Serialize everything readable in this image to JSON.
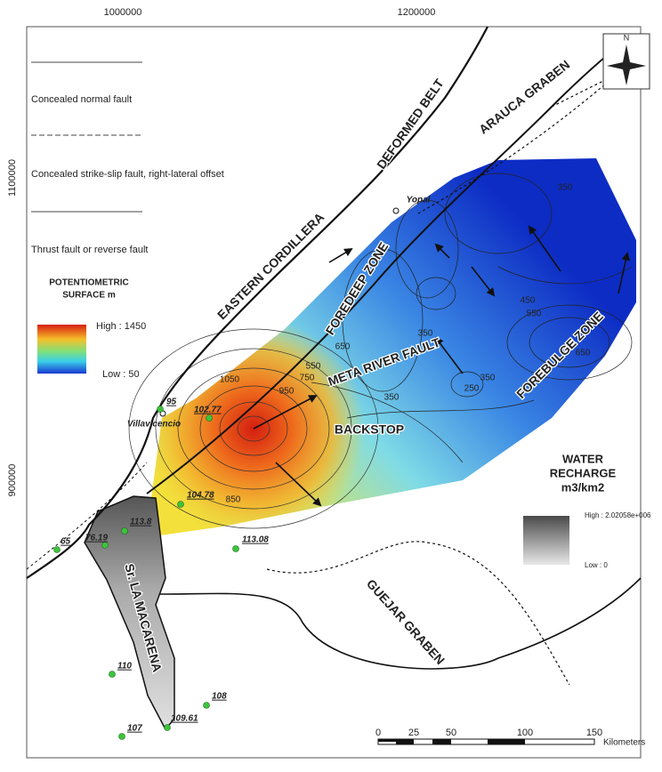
{
  "map": {
    "coordinates": {
      "top": [
        "1000000",
        "1200000"
      ],
      "left": [
        "1100000",
        "900000"
      ]
    },
    "legend": {
      "faults": [
        "Concealed normal fault",
        "Concealed strike-slip fault, right-lateral offset",
        "Thrust fault or reverse fault"
      ],
      "potentiometric": {
        "title_lines": [
          "POTENTIOMETRIC",
          "SURFACE m"
        ],
        "high": "High : 1450",
        "low": "Low : 50"
      },
      "recharge": {
        "title_lines": [
          "WATER",
          "RECHARGE",
          "m3/km2"
        ],
        "high": "High : 2.02058e+006",
        "low": "Low : 0"
      }
    },
    "north": "N",
    "regions": [
      "EASTERN CORDILLERA",
      "DEFORMED BELT",
      "ARAUCA GRABEN",
      "FOREDEEP ZONE",
      "META RIVER FAULT",
      "BACKSTOP",
      "FOREBULGE ZONE",
      "GUEJAR GRABEN",
      "Sr. LA MACARENA"
    ],
    "cities": [
      "Villavicencio",
      "Yopal"
    ],
    "contours": [
      "1050",
      "950",
      "850",
      "750",
      "650",
      "550",
      "450",
      "350",
      "350",
      "350",
      "250",
      "350",
      "550",
      "650"
    ],
    "wells": [
      "95",
      "102.77",
      "104.78",
      "113.8",
      "76.19",
      "65",
      "113.08",
      "110",
      "108",
      "109.61",
      "107"
    ],
    "scale": {
      "ticks": [
        "0",
        "25",
        "50",
        "100",
        "150"
      ],
      "unit": "Kilometers"
    }
  }
}
